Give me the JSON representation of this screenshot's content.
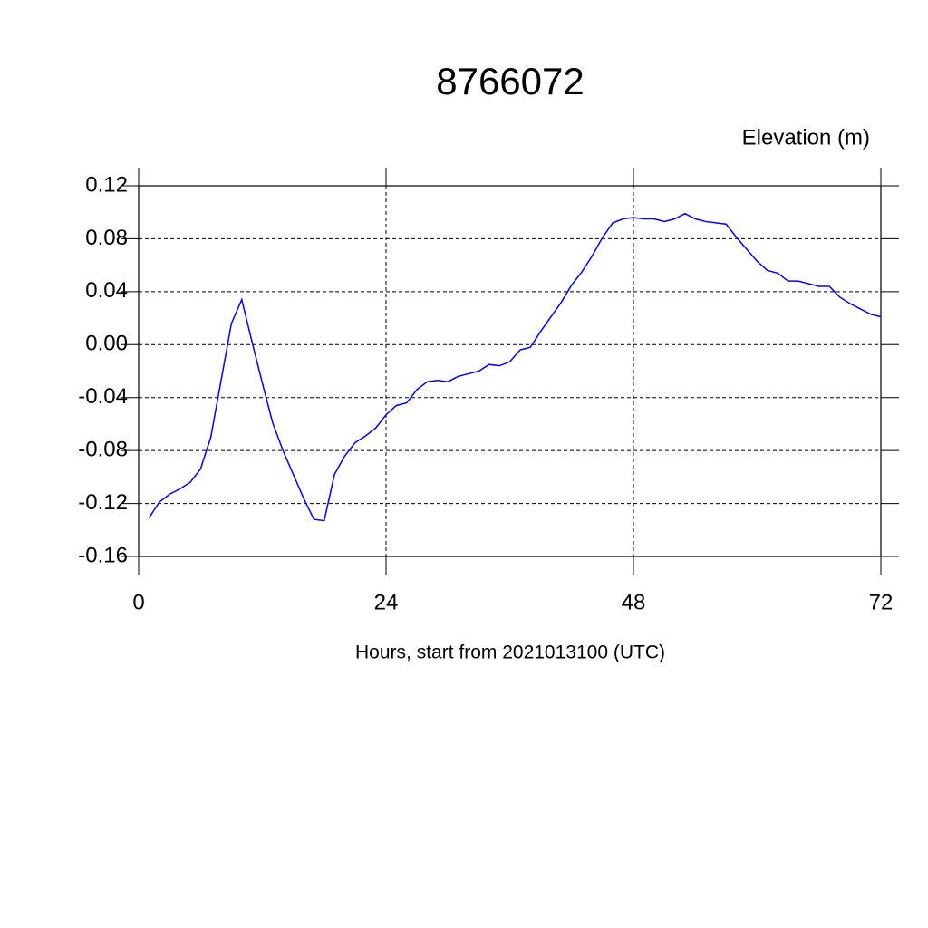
{
  "chart_data": {
    "type": "line",
    "title": "8766072",
    "ylabel": "Elevation (m)",
    "xlabel": "Hours, start from 2021013100 (UTC)",
    "x": [
      1,
      2,
      3,
      4,
      5,
      6,
      7,
      8,
      9,
      10,
      11,
      12,
      13,
      14,
      15,
      16,
      17,
      18,
      19,
      20,
      21,
      22,
      23,
      24,
      25,
      26,
      27,
      28,
      29,
      30,
      31,
      32,
      33,
      34,
      35,
      36,
      37,
      38,
      39,
      40,
      41,
      42,
      43,
      44,
      45,
      46,
      47,
      48,
      49,
      50,
      51,
      52,
      53,
      54,
      55,
      56,
      57,
      58,
      59,
      60,
      61,
      62,
      63,
      64,
      65,
      66,
      67,
      68,
      69,
      70,
      71,
      72
    ],
    "series": [
      {
        "color": "#0000ff",
        "values": [
          -0.131,
          -0.119,
          -0.113,
          -0.109,
          -0.104,
          -0.094,
          -0.07,
          -0.027,
          0.016,
          0.034,
          0.002,
          -0.029,
          -0.059,
          -0.08,
          -0.098,
          -0.116,
          -0.132,
          -0.133,
          -0.098,
          -0.084,
          -0.074,
          -0.069,
          -0.063,
          -0.053,
          -0.046,
          -0.044,
          -0.034,
          -0.028,
          -0.027,
          -0.028,
          -0.024,
          -0.022,
          -0.02,
          -0.015,
          -0.016,
          -0.013,
          -0.004,
          -0.002,
          0.01,
          0.021,
          0.032,
          0.045,
          0.055,
          0.067,
          0.081,
          0.092,
          0.095,
          0.096,
          0.095,
          0.095,
          0.093,
          0.095,
          0.099,
          0.095,
          0.093,
          0.092,
          0.091,
          0.081,
          0.072,
          0.063,
          0.056,
          0.054,
          0.048,
          0.048,
          0.046,
          0.044,
          0.044,
          0.036,
          0.031,
          0.027,
          0.023,
          0.021
        ]
      }
    ],
    "xlim": [
      0,
      72
    ],
    "xticks": [
      0,
      24,
      48,
      72
    ],
    "ylim": [
      -0.16,
      0.12
    ],
    "yticks": [
      0.12,
      0.08,
      0.04,
      {
        "value": 0,
        "label": "0.00"
      },
      -0.04,
      -0.08,
      -0.12,
      -0.16
    ],
    "grid": true
  }
}
